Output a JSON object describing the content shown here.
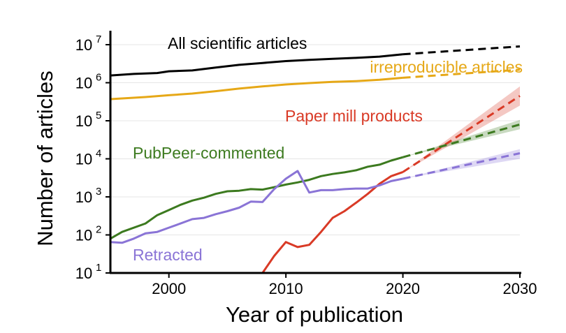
{
  "chart_data": {
    "type": "line",
    "xlabel": "Year of publication",
    "ylabel": "Number of articles",
    "xlim": [
      1995,
      2030
    ],
    "ylim": [
      10,
      10000000
    ],
    "y_scale": "log",
    "x_ticks": [
      2000,
      2010,
      2020,
      2030
    ],
    "y_ticks": [
      {
        "value": 10,
        "base": "10",
        "exp": "1"
      },
      {
        "value": 100,
        "base": "10",
        "exp": "2"
      },
      {
        "value": 1000,
        "base": "10",
        "exp": "3"
      },
      {
        "value": 10000,
        "base": "10",
        "exp": "4"
      },
      {
        "value": 100000,
        "base": "10",
        "exp": "5"
      },
      {
        "value": 1000000,
        "base": "10",
        "exp": "6"
      },
      {
        "value": 10000000,
        "base": "10",
        "exp": "7"
      }
    ],
    "grid": "horizontal",
    "series": [
      {
        "name": "All scientific articles",
        "color": "#000000",
        "observed": [
          [
            1995,
            1550000
          ],
          [
            1997,
            1700000
          ],
          [
            1999,
            1800000
          ],
          [
            2000,
            2000000
          ],
          [
            2002,
            2100000
          ],
          [
            2004,
            2500000
          ],
          [
            2006,
            2950000
          ],
          [
            2008,
            3300000
          ],
          [
            2010,
            3700000
          ],
          [
            2012,
            4000000
          ],
          [
            2014,
            4250000
          ],
          [
            2016,
            4500000
          ],
          [
            2018,
            4850000
          ],
          [
            2020,
            5600000
          ]
        ],
        "projection": [
          [
            2020,
            5600000
          ],
          [
            2030,
            9000000
          ]
        ]
      },
      {
        "name": "irreproducible articles",
        "color": "#e6a817",
        "observed": [
          [
            1995,
            370000
          ],
          [
            1998,
            420000
          ],
          [
            2000,
            470000
          ],
          [
            2002,
            520000
          ],
          [
            2004,
            600000
          ],
          [
            2006,
            700000
          ],
          [
            2008,
            800000
          ],
          [
            2010,
            900000
          ],
          [
            2012,
            980000
          ],
          [
            2014,
            1050000
          ],
          [
            2016,
            1100000
          ],
          [
            2018,
            1200000
          ],
          [
            2020,
            1350000
          ]
        ],
        "projection": [
          [
            2020,
            1350000
          ],
          [
            2030,
            2200000
          ]
        ]
      },
      {
        "name": "Paper mill products",
        "color": "#d93a26",
        "observed": [
          [
            2008,
            10
          ],
          [
            2009,
            28
          ],
          [
            2010,
            65
          ],
          [
            2011,
            48
          ],
          [
            2012,
            55
          ],
          [
            2013,
            120
          ],
          [
            2014,
            280
          ],
          [
            2015,
            420
          ],
          [
            2016,
            700
          ],
          [
            2017,
            1200
          ],
          [
            2018,
            2200
          ],
          [
            2019,
            3500
          ],
          [
            2020,
            4500
          ]
        ],
        "projection": [
          [
            2020,
            4500
          ],
          [
            2030,
            450000
          ]
        ],
        "band": [
          [
            2020,
            4500,
            4500
          ],
          [
            2030,
            250000,
            800000
          ]
        ]
      },
      {
        "name": "PubPeer-commented",
        "color": "#3c7a1f",
        "observed": [
          [
            1995,
            80
          ],
          [
            1996,
            120
          ],
          [
            1998,
            200
          ],
          [
            1999,
            330
          ],
          [
            2000,
            450
          ],
          [
            2001,
            620
          ],
          [
            2002,
            800
          ],
          [
            2003,
            950
          ],
          [
            2004,
            1200
          ],
          [
            2005,
            1400
          ],
          [
            2006,
            1450
          ],
          [
            2007,
            1600
          ],
          [
            2008,
            1550
          ],
          [
            2009,
            1800
          ],
          [
            2010,
            2100
          ],
          [
            2011,
            2400
          ],
          [
            2012,
            2800
          ],
          [
            2013,
            3500
          ],
          [
            2014,
            4000
          ],
          [
            2015,
            4400
          ],
          [
            2016,
            5000
          ],
          [
            2017,
            6200
          ],
          [
            2018,
            7000
          ],
          [
            2019,
            9000
          ],
          [
            2020,
            11000
          ]
        ],
        "projection": [
          [
            2020,
            11000
          ],
          [
            2030,
            80000
          ]
        ],
        "band": [
          [
            2020,
            11000,
            11000
          ],
          [
            2030,
            60000,
            105000
          ]
        ]
      },
      {
        "name": "Retracted",
        "color": "#8a74d6",
        "observed": [
          [
            1995,
            65
          ],
          [
            1996,
            62
          ],
          [
            1997,
            80
          ],
          [
            1998,
            110
          ],
          [
            1999,
            120
          ],
          [
            2000,
            155
          ],
          [
            2001,
            200
          ],
          [
            2002,
            260
          ],
          [
            2003,
            280
          ],
          [
            2004,
            350
          ],
          [
            2005,
            420
          ],
          [
            2006,
            520
          ],
          [
            2007,
            750
          ],
          [
            2008,
            730
          ],
          [
            2009,
            1600
          ],
          [
            2010,
            3000
          ],
          [
            2011,
            4800
          ],
          [
            2012,
            1300
          ],
          [
            2013,
            1500
          ],
          [
            2014,
            1500
          ],
          [
            2015,
            1600
          ],
          [
            2016,
            1650
          ],
          [
            2017,
            1650
          ],
          [
            2018,
            2000
          ],
          [
            2019,
            2600
          ],
          [
            2020,
            3000
          ]
        ],
        "projection": [
          [
            2020,
            3000
          ],
          [
            2030,
            14000
          ]
        ],
        "band": [
          [
            2020,
            3000,
            3000
          ],
          [
            2030,
            10000,
            18000
          ]
        ]
      }
    ]
  }
}
